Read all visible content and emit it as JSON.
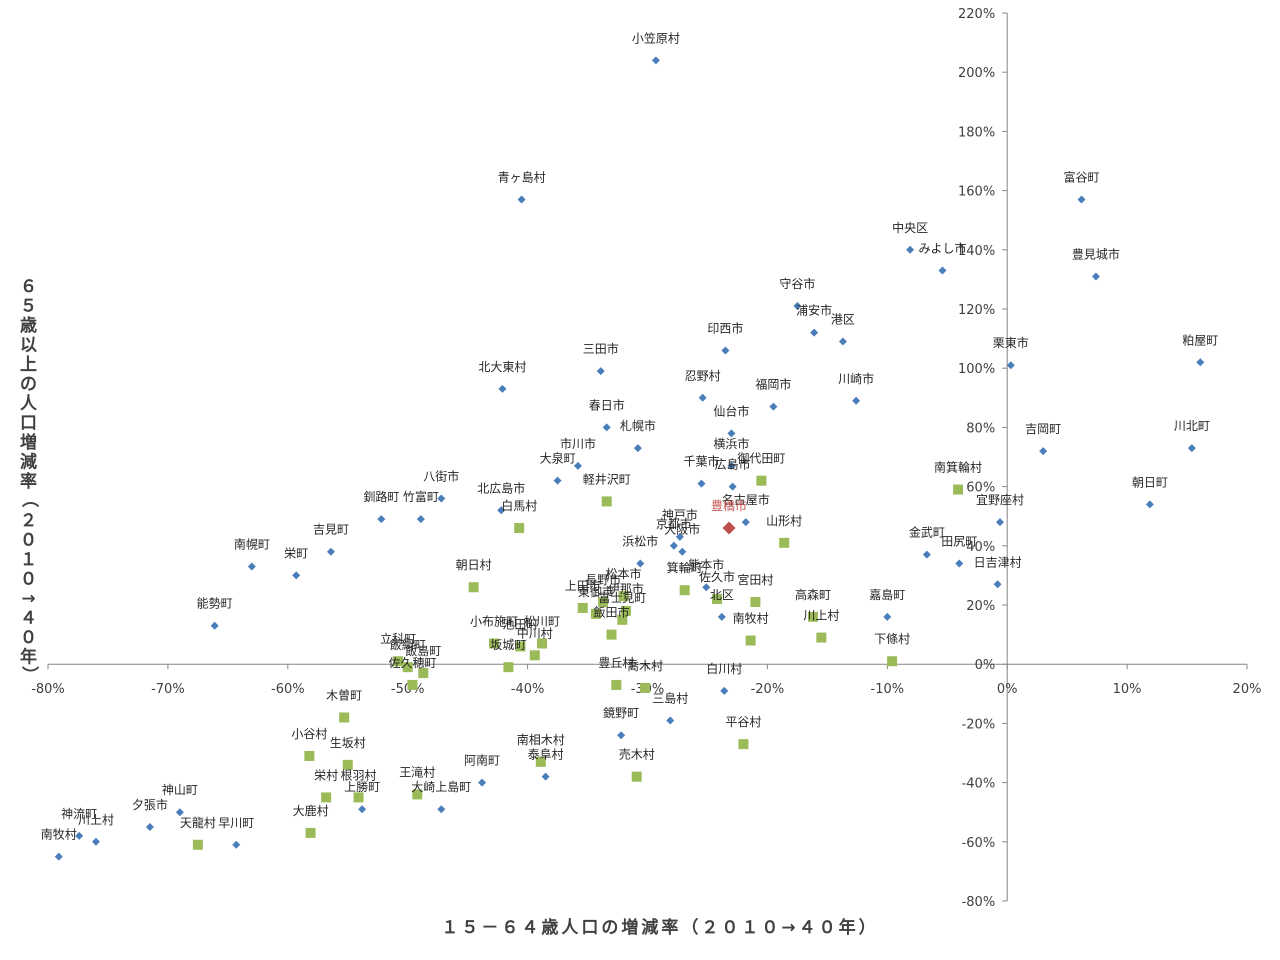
{
  "chart_data": {
    "type": "scatter",
    "title": "",
    "xlabel": "１５－６４歳人口の増減率（２０１０→４０年）",
    "ylabel": "６５歳以上の人口増減率（２０１０→４０年）",
    "xlim": [
      -0.8,
      0.2
    ],
    "ylim": [
      -0.8,
      2.2
    ],
    "x_ticks": [
      "-80%",
      "-70%",
      "-60%",
      "-50%",
      "-40%",
      "-30%",
      "-20%",
      "-10%",
      "0%",
      "10%",
      "20%"
    ],
    "y_ticks": [
      "-80%",
      "-60%",
      "-40%",
      "-20%",
      "0%",
      "20%",
      "40%",
      "60%",
      "80%",
      "100%",
      "120%",
      "140%",
      "160%",
      "180%",
      "200%",
      "220%"
    ],
    "grid": false,
    "series": [
      {
        "marker": "diamond",
        "color": "#4a7ebb",
        "points": [
          {
            "label": "小笠原村",
            "x": -0.293,
            "y": 2.04
          },
          {
            "label": "青ヶ島村",
            "x": -0.405,
            "y": 1.57
          },
          {
            "label": "富谷町",
            "x": 0.062,
            "y": 1.57
          },
          {
            "label": "中央区",
            "x": -0.081,
            "y": 1.4
          },
          {
            "label": "みよし市",
            "x": -0.054,
            "y": 1.33
          },
          {
            "label": "豊見城市",
            "x": 0.074,
            "y": 1.31
          },
          {
            "label": "守谷市",
            "x": -0.175,
            "y": 1.21
          },
          {
            "label": "浦安市",
            "x": -0.161,
            "y": 1.12
          },
          {
            "label": "港区",
            "x": -0.137,
            "y": 1.09
          },
          {
            "label": "印西市",
            "x": -0.235,
            "y": 1.06
          },
          {
            "label": "粕屋町",
            "x": 0.161,
            "y": 1.02
          },
          {
            "label": "栗東市",
            "x": 0.003,
            "y": 1.01
          },
          {
            "label": "三田市",
            "x": -0.339,
            "y": 0.99
          },
          {
            "label": "北大東村",
            "x": -0.421,
            "y": 0.93
          },
          {
            "label": "忍野村",
            "x": -0.254,
            "y": 0.9
          },
          {
            "label": "川崎市",
            "x": -0.126,
            "y": 0.89
          },
          {
            "label": "福岡市",
            "x": -0.195,
            "y": 0.87
          },
          {
            "label": "春日市",
            "x": -0.334,
            "y": 0.8
          },
          {
            "label": "仙台市",
            "x": -0.23,
            "y": 0.78
          },
          {
            "label": "札幌市",
            "x": -0.308,
            "y": 0.73
          },
          {
            "label": "川北町",
            "x": 0.154,
            "y": 0.73
          },
          {
            "label": "吉岡町",
            "x": 0.03,
            "y": 0.72
          },
          {
            "label": "市川市",
            "x": -0.358,
            "y": 0.67
          },
          {
            "label": "横浜市",
            "x": -0.23,
            "y": 0.67
          },
          {
            "label": "大泉町",
            "x": -0.375,
            "y": 0.62
          },
          {
            "label": "千葉市",
            "x": -0.255,
            "y": 0.61
          },
          {
            "label": "広島市",
            "x": -0.229,
            "y": 0.6
          },
          {
            "label": "八街市",
            "x": -0.472,
            "y": 0.56
          },
          {
            "label": "朝日町",
            "x": 0.119,
            "y": 0.54
          },
          {
            "label": "北広島市",
            "x": -0.422,
            "y": 0.52
          },
          {
            "label": "釧路町",
            "x": -0.522,
            "y": 0.49
          },
          {
            "label": "竹富町",
            "x": -0.489,
            "y": 0.49
          },
          {
            "label": "名古屋市",
            "x": -0.218,
            "y": 0.48
          },
          {
            "label": "宜野座村",
            "x": -0.006,
            "y": 0.48
          },
          {
            "label": "神戸市",
            "x": -0.273,
            "y": 0.43
          },
          {
            "label": "京都市",
            "x": -0.278,
            "y": 0.4
          },
          {
            "label": "大阪市",
            "x": -0.271,
            "y": 0.38
          },
          {
            "label": "吉見町",
            "x": -0.564,
            "y": 0.38
          },
          {
            "label": "金武町",
            "x": -0.067,
            "y": 0.37
          },
          {
            "label": "田尻町",
            "x": -0.04,
            "y": 0.34
          },
          {
            "label": "浜松市",
            "x": -0.306,
            "y": 0.34
          },
          {
            "label": "南幌町",
            "x": -0.63,
            "y": 0.33
          },
          {
            "label": "栄町",
            "x": -0.593,
            "y": 0.3
          },
          {
            "label": "日吉津村",
            "x": -0.008,
            "y": 0.27
          },
          {
            "label": "熊本市",
            "x": -0.251,
            "y": 0.26
          },
          {
            "label": "北区",
            "x": -0.238,
            "y": 0.16
          },
          {
            "label": "嘉島町",
            "x": -0.1,
            "y": 0.16
          },
          {
            "label": "能勢町",
            "x": -0.661,
            "y": 0.13
          },
          {
            "label": "白川村",
            "x": -0.236,
            "y": -0.09
          },
          {
            "label": "三島村",
            "x": -0.281,
            "y": -0.19
          },
          {
            "label": "鏡野町",
            "x": -0.322,
            "y": -0.24
          },
          {
            "label": "泰阜村",
            "x": -0.385,
            "y": -0.38
          },
          {
            "label": "阿南町",
            "x": -0.438,
            "y": -0.4
          },
          {
            "label": "大崎上島町",
            "x": -0.472,
            "y": -0.49
          },
          {
            "label": "上勝町",
            "x": -0.538,
            "y": -0.49
          },
          {
            "label": "神山町",
            "x": -0.69,
            "y": -0.5
          },
          {
            "label": "夕張市",
            "x": -0.715,
            "y": -0.55
          },
          {
            "label": "神流町",
            "x": -0.774,
            "y": -0.58
          },
          {
            "label": "川上村",
            "x": -0.76,
            "y": -0.6
          },
          {
            "label": "早川町",
            "x": -0.643,
            "y": -0.61
          },
          {
            "label": "南牧村",
            "x": -0.791,
            "y": -0.65
          }
        ]
      },
      {
        "marker": "square",
        "color": "#9bbb59",
        "points": [
          {
            "label": "御代田町",
            "x": -0.205,
            "y": 0.62
          },
          {
            "label": "南箕輪村",
            "x": -0.041,
            "y": 0.59
          },
          {
            "label": "軽井沢町",
            "x": -0.334,
            "y": 0.55
          },
          {
            "label": "白馬村",
            "x": -0.407,
            "y": 0.46
          },
          {
            "label": "山形村",
            "x": -0.186,
            "y": 0.41
          },
          {
            "label": "朝日村",
            "x": -0.445,
            "y": 0.26
          },
          {
            "label": "箕輪町",
            "x": -0.269,
            "y": 0.25
          },
          {
            "label": "佐久市",
            "x": -0.242,
            "y": 0.22
          },
          {
            "label": "宮田村",
            "x": -0.21,
            "y": 0.21
          },
          {
            "label": "高森町",
            "x": -0.162,
            "y": 0.16
          },
          {
            "label": "川上村",
            "x": -0.155,
            "y": 0.09
          },
          {
            "label": "南牧村",
            "x": -0.214,
            "y": 0.08
          },
          {
            "label": "下條村",
            "x": -0.096,
            "y": 0.01
          },
          {
            "label": "松本市",
            "x": -0.32,
            "y": 0.23
          },
          {
            "label": "長野市",
            "x": -0.337,
            "y": 0.21
          },
          {
            "label": "伊那市",
            "x": -0.318,
            "y": 0.18
          },
          {
            "label": "富士見町",
            "x": -0.321,
            "y": 0.15
          },
          {
            "label": "飯田市",
            "x": -0.33,
            "y": 0.1
          },
          {
            "label": "上田市",
            "x": -0.354,
            "y": 0.19
          },
          {
            "label": "東御市",
            "x": -0.343,
            "y": 0.17
          },
          {
            "label": "小布施町",
            "x": -0.428,
            "y": 0.07
          },
          {
            "label": "池田町",
            "x": -0.406,
            "y": 0.06
          },
          {
            "label": "松川町",
            "x": -0.388,
            "y": 0.07
          },
          {
            "label": "中川村",
            "x": -0.394,
            "y": 0.03
          },
          {
            "label": "坂城町",
            "x": -0.416,
            "y": -0.01
          },
          {
            "label": "豊丘村",
            "x": -0.326,
            "y": -0.07
          },
          {
            "label": "喬木村",
            "x": -0.302,
            "y": -0.08
          },
          {
            "label": "立科町",
            "x": -0.508,
            "y": 0.01
          },
          {
            "label": "飯綱町",
            "x": -0.5,
            "y": -0.01
          },
          {
            "label": "飯島町",
            "x": -0.487,
            "y": -0.03
          },
          {
            "label": "佐久穂町",
            "x": -0.496,
            "y": -0.07
          },
          {
            "label": "南相木村",
            "x": -0.389,
            "y": -0.33
          },
          {
            "label": "売木村",
            "x": -0.309,
            "y": -0.38
          },
          {
            "label": "平谷村",
            "x": -0.22,
            "y": -0.27
          },
          {
            "label": "大鹿村",
            "x": -0.581,
            "y": -0.57
          },
          {
            "label": "天龍村",
            "x": -0.675,
            "y": -0.61
          },
          {
            "label": "栄村",
            "x": -0.568,
            "y": -0.45
          },
          {
            "label": "根羽村",
            "x": -0.541,
            "y": -0.45
          },
          {
            "label": "小谷村",
            "x": -0.582,
            "y": -0.31
          },
          {
            "label": "王滝村",
            "x": -0.492,
            "y": -0.44
          },
          {
            "label": "木曽町",
            "x": -0.553,
            "y": -0.18
          },
          {
            "label": "生坂村",
            "x": -0.55,
            "y": -0.34
          }
        ]
      },
      {
        "marker": "diamond-large",
        "color": "#c0504d",
        "points": [
          {
            "label": "豊橋市",
            "x": -0.232,
            "y": 0.46
          }
        ]
      }
    ]
  }
}
